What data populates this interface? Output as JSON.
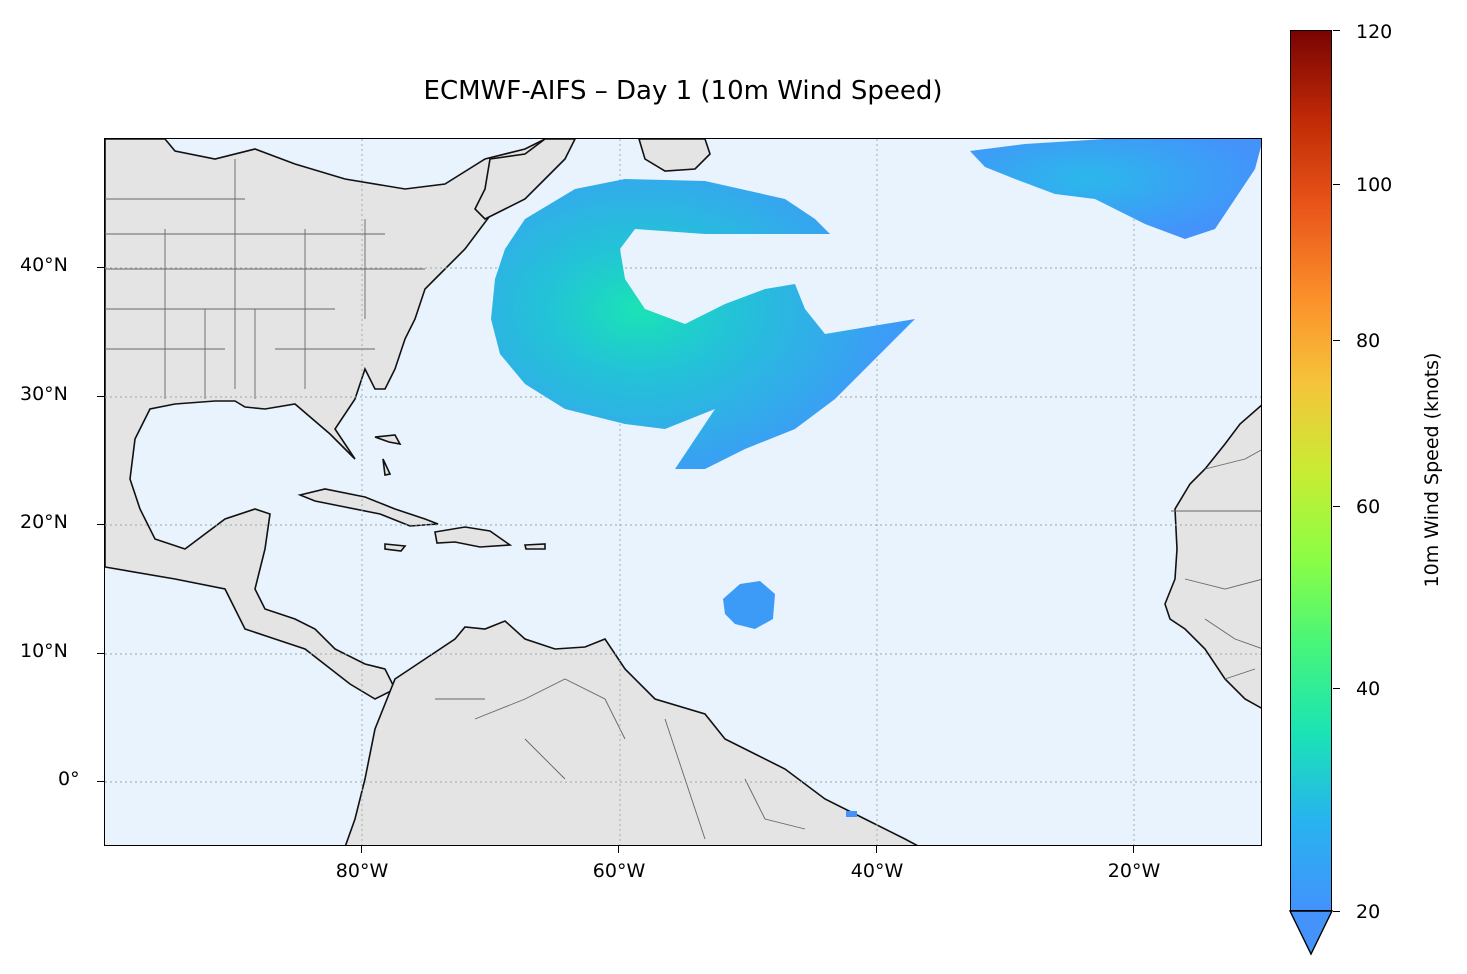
{
  "title": "ECMWF-AIFS – Day 1 (10m Wind Speed)",
  "map": {
    "projection": "PlateCarree",
    "lon_range": [
      -100,
      -10
    ],
    "lat_range": [
      -5,
      50
    ],
    "ocean_color": "#e8f3fd",
    "land_color": "#e4e4e4",
    "gridlines": "dotted",
    "x_ticks": [
      "80°W",
      "60°W",
      "40°W",
      "20°W"
    ],
    "y_ticks": [
      "40°N",
      "30°N",
      "20°N",
      "10°N",
      "0°"
    ]
  },
  "colorbar": {
    "label": "10m Wind Speed (knots)",
    "colormap": "turbo",
    "ticks": [
      "20",
      "40",
      "60",
      "80",
      "100",
      "120"
    ],
    "min": 20,
    "max": 120,
    "extend": "min"
  },
  "wind_features": [
    {
      "name": "western-atlantic-storm",
      "max_knots": 38
    },
    {
      "name": "northeast-atlantic-jet",
      "max_knots": 30
    },
    {
      "name": "tropical-disturbance",
      "max_knots": 22
    }
  ]
}
